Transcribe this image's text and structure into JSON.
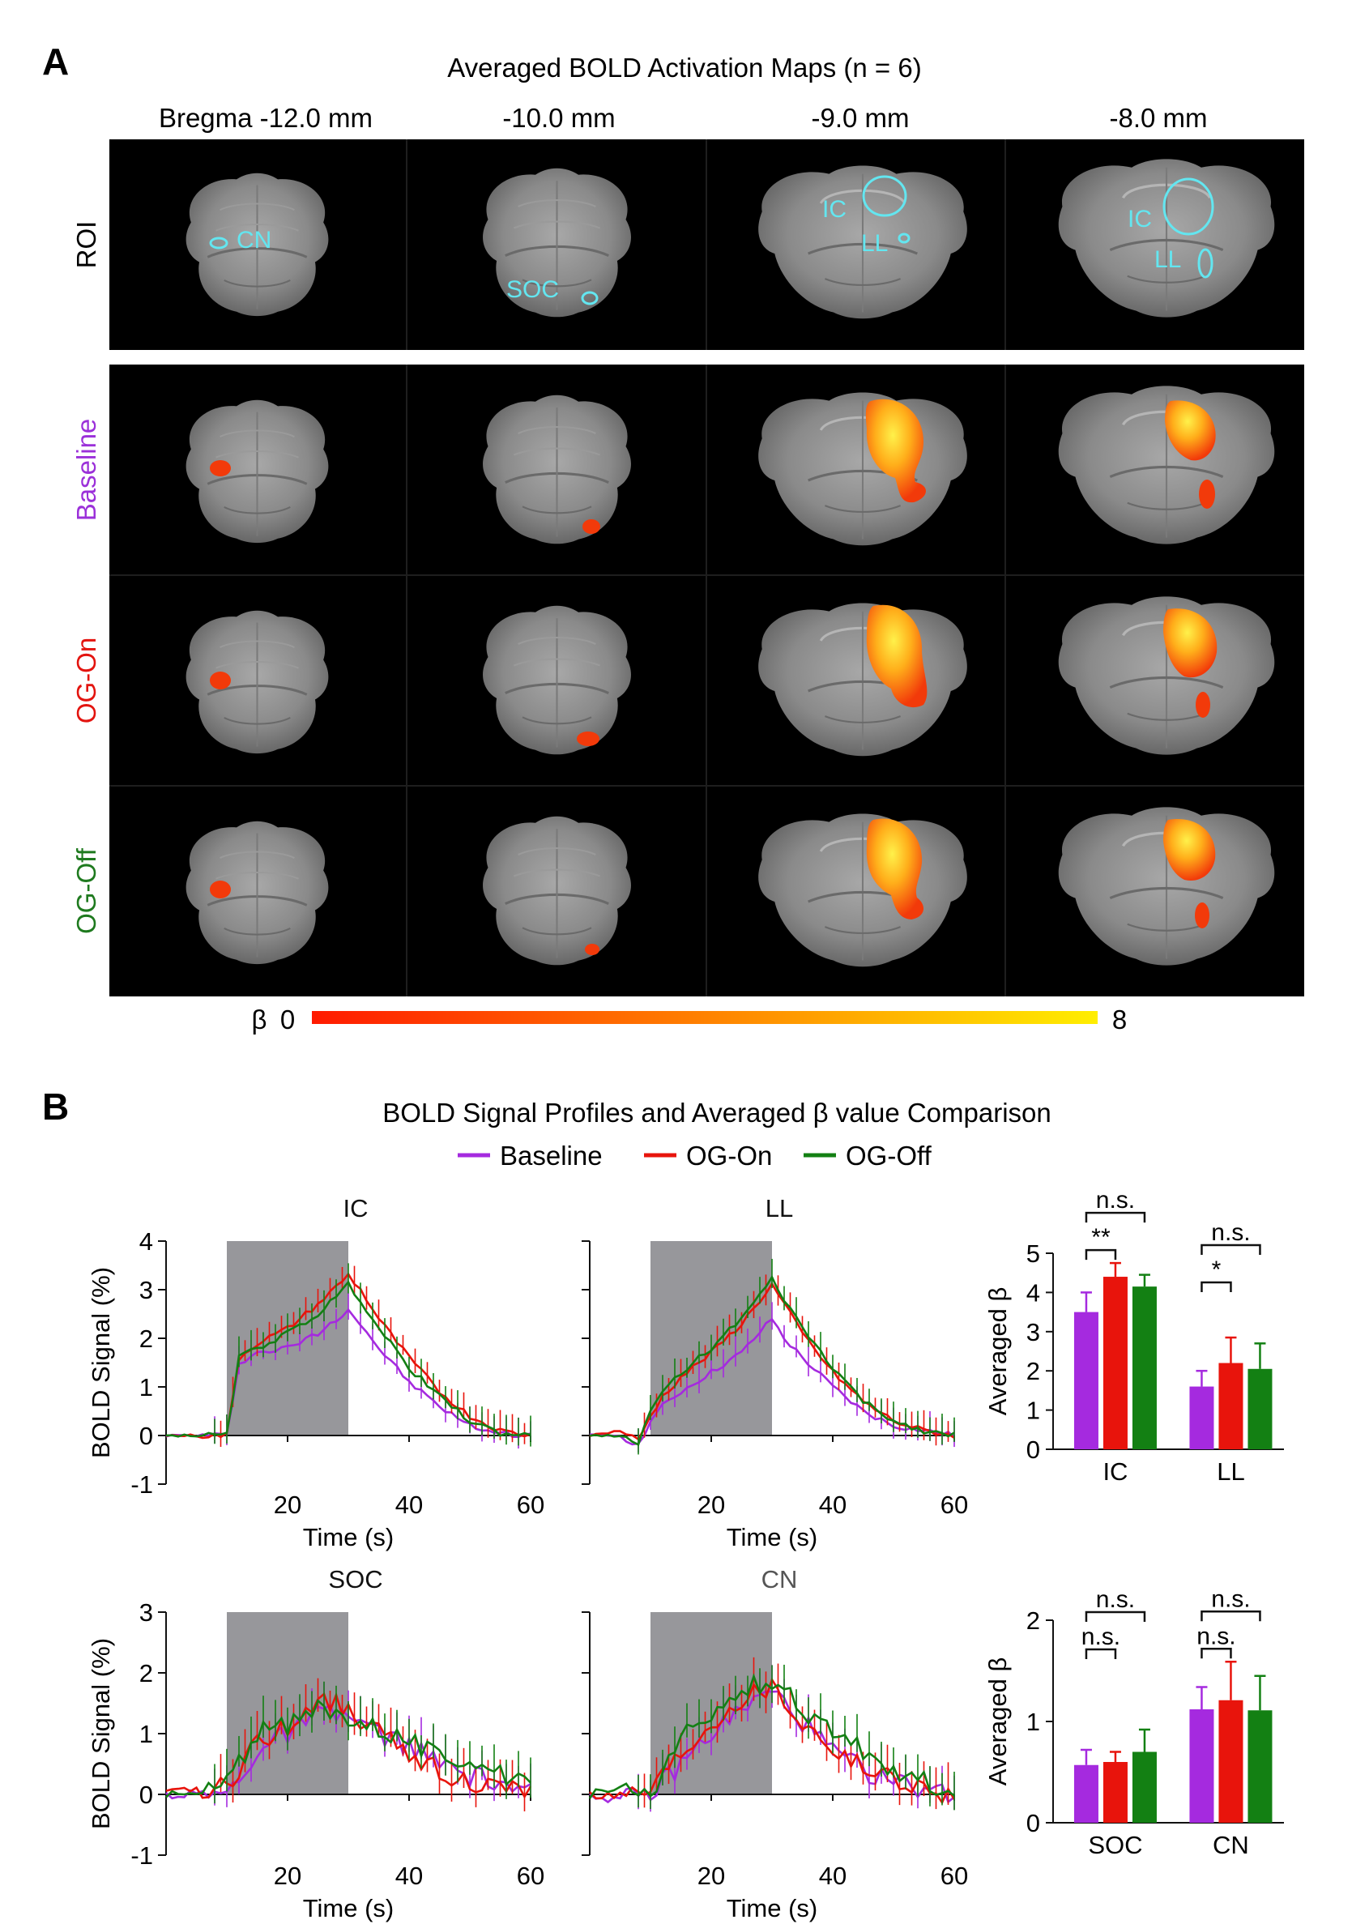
{
  "panelA": {
    "letter": "A",
    "title": "Averaged BOLD Activation Maps (n = 6)",
    "columns": [
      "Bregma -12.0 mm",
      "-10.0 mm",
      "-9.0 mm",
      "-8.0 mm"
    ],
    "rows": [
      {
        "label": "ROI",
        "color": "#111111"
      },
      {
        "label": "Baseline",
        "color": "#9b30d9"
      },
      {
        "label": "OG-On",
        "color": "#e3140f"
      },
      {
        "label": "OG-Off",
        "color": "#1f7a1f"
      }
    ],
    "roi_labels": [
      "CN",
      "SOC",
      "IC",
      "LL",
      "IC",
      "LL"
    ],
    "colorbar": {
      "symbol": "β",
      "min": "0",
      "max": "8",
      "color_low": "#ff1a00",
      "color_high": "#ffee00"
    }
  },
  "panelB": {
    "letter": "B",
    "title": "BOLD Signal Profiles and Averaged β value Comparison",
    "legend": [
      {
        "label": "Baseline",
        "color": "#a52adf"
      },
      {
        "label": "OG-On",
        "color": "#e8140c"
      },
      {
        "label": "OG-Off",
        "color": "#138013"
      }
    ],
    "x_axis_label": "Time (s)",
    "y_axis_label": "BOLD Signal (%)",
    "bar_y_label": "Averaged β",
    "categories_top": [
      "IC",
      "LL"
    ],
    "categories_bottom": [
      "SOC",
      "CN"
    ],
    "sig_top": [
      "n.s.",
      "**",
      "n.s.",
      "*"
    ],
    "sig_bottom": [
      "n.s.",
      "n.s.",
      "n.s.",
      "n.s."
    ]
  },
  "chart_data": [
    {
      "type": "line",
      "title": "IC",
      "xlabel": "Time (s)",
      "ylabel": "BOLD Signal (%)",
      "xlim": [
        0,
        60
      ],
      "ylim": [
        -1,
        4
      ],
      "xticks": [
        "20",
        "40",
        "60"
      ],
      "yticks": [
        "-1",
        "0",
        "1",
        "2",
        "3",
        "4"
      ],
      "stim_window": [
        10,
        30
      ],
      "series": [
        {
          "name": "Baseline",
          "x": [
            0,
            5,
            10,
            12,
            15,
            20,
            25,
            30,
            32,
            35,
            40,
            45,
            50,
            55,
            60
          ],
          "values": [
            0,
            0,
            0,
            1.5,
            1.7,
            1.8,
            2.1,
            2.6,
            2.3,
            1.8,
            1.1,
            0.6,
            0.2,
            0.05,
            0
          ]
        },
        {
          "name": "OG-On",
          "x": [
            0,
            5,
            10,
            12,
            15,
            20,
            25,
            30,
            32,
            35,
            40,
            45,
            50,
            55,
            60
          ],
          "values": [
            0,
            0,
            0,
            1.6,
            1.9,
            2.2,
            2.7,
            3.3,
            3.0,
            2.4,
            1.6,
            0.9,
            0.4,
            0.1,
            0
          ]
        },
        {
          "name": "OG-Off",
          "x": [
            0,
            5,
            10,
            12,
            15,
            20,
            25,
            30,
            32,
            35,
            40,
            45,
            50,
            55,
            60
          ],
          "values": [
            0,
            0,
            0,
            1.6,
            1.8,
            2.1,
            2.5,
            3.1,
            2.8,
            2.2,
            1.4,
            0.8,
            0.3,
            0.05,
            0
          ]
        }
      ]
    },
    {
      "type": "line",
      "title": "LL",
      "xlabel": "Time (s)",
      "ylabel": "",
      "xlim": [
        0,
        60
      ],
      "ylim": [
        -1,
        4
      ],
      "xticks": [
        "20",
        "40",
        "60"
      ],
      "stim_window": [
        10,
        30
      ],
      "series": [
        {
          "name": "Baseline",
          "x": [
            0,
            5,
            8,
            10,
            12,
            15,
            20,
            25,
            30,
            32,
            35,
            40,
            45,
            50,
            55,
            60
          ],
          "values": [
            0,
            0,
            -0.2,
            0.3,
            0.6,
            0.9,
            1.3,
            1.7,
            2.4,
            2.0,
            1.6,
            1.0,
            0.5,
            0.2,
            0.1,
            0
          ]
        },
        {
          "name": "OG-On",
          "x": [
            0,
            5,
            8,
            10,
            12,
            15,
            20,
            25,
            30,
            32,
            35,
            40,
            45,
            50,
            55,
            60
          ],
          "values": [
            0,
            0.1,
            -0.1,
            0.4,
            0.8,
            1.2,
            1.7,
            2.3,
            3.1,
            2.7,
            2.1,
            1.3,
            0.7,
            0.3,
            0.1,
            0
          ]
        },
        {
          "name": "OG-Off",
          "x": [
            0,
            5,
            8,
            10,
            12,
            15,
            20,
            25,
            30,
            32,
            35,
            40,
            45,
            50,
            55,
            60
          ],
          "values": [
            0,
            0,
            -0.2,
            0.5,
            0.9,
            1.3,
            1.8,
            2.4,
            3.2,
            2.8,
            2.2,
            1.4,
            0.7,
            0.3,
            0.1,
            0
          ]
        }
      ]
    },
    {
      "type": "bar",
      "title": "",
      "ylabel": "Averaged β",
      "ylim": [
        0,
        5
      ],
      "yticks": [
        "0",
        "1",
        "2",
        "3",
        "4",
        "5"
      ],
      "categories": [
        "IC",
        "LL"
      ],
      "series": [
        {
          "name": "Baseline",
          "values": [
            3.5,
            1.6
          ],
          "errors": [
            0.5,
            0.4
          ]
        },
        {
          "name": "OG-On",
          "values": [
            4.4,
            2.2
          ],
          "errors": [
            0.35,
            0.65
          ]
        },
        {
          "name": "OG-Off",
          "values": [
            4.15,
            2.05
          ],
          "errors": [
            0.3,
            0.65
          ]
        }
      ],
      "annotations": [
        {
          "text": "n.s.",
          "between": [
            "IC Baseline",
            "IC OG-Off"
          ]
        },
        {
          "text": "**",
          "between": [
            "IC Baseline",
            "IC OG-On"
          ]
        },
        {
          "text": "n.s.",
          "between": [
            "LL Baseline",
            "LL OG-Off"
          ]
        },
        {
          "text": "*",
          "between": [
            "LL Baseline",
            "LL OG-On"
          ]
        }
      ]
    },
    {
      "type": "line",
      "title": "SOC",
      "xlabel": "Time (s)",
      "ylabel": "BOLD Signal (%)",
      "xlim": [
        0,
        60
      ],
      "ylim": [
        -1,
        3
      ],
      "xticks": [
        "20",
        "40",
        "60"
      ],
      "yticks": [
        "-1",
        "0",
        "1",
        "2",
        "3"
      ],
      "stim_window": [
        10,
        30
      ],
      "series": [
        {
          "name": "Baseline",
          "x": [
            0,
            5,
            10,
            15,
            20,
            25,
            30,
            35,
            40,
            45,
            50,
            55,
            60
          ],
          "values": [
            0,
            0,
            0,
            0.7,
            1.0,
            1.3,
            1.3,
            1.0,
            0.8,
            0.5,
            0.3,
            0.2,
            0
          ]
        },
        {
          "name": "OG-On",
          "x": [
            0,
            5,
            10,
            15,
            20,
            25,
            30,
            35,
            40,
            45,
            50,
            55,
            60
          ],
          "values": [
            0,
            0.1,
            0.1,
            0.9,
            1.1,
            1.6,
            1.4,
            1.0,
            0.7,
            0.4,
            0.2,
            0.1,
            0
          ]
        },
        {
          "name": "OG-Off",
          "x": [
            0,
            5,
            10,
            15,
            20,
            25,
            30,
            35,
            40,
            45,
            50,
            55,
            60
          ],
          "values": [
            0,
            0,
            0.2,
            1.0,
            1.1,
            1.4,
            1.3,
            1.1,
            0.9,
            0.6,
            0.6,
            0.3,
            0.1
          ]
        }
      ]
    },
    {
      "type": "line",
      "title": "CN",
      "xlabel": "Time (s)",
      "ylabel": "",
      "xlim": [
        0,
        60
      ],
      "ylim": [
        -1,
        3
      ],
      "xticks": [
        "20",
        "40",
        "60"
      ],
      "stim_window": [
        10,
        30
      ],
      "series": [
        {
          "name": "Baseline",
          "x": [
            0,
            5,
            10,
            15,
            20,
            25,
            30,
            35,
            40,
            45,
            50,
            55,
            60
          ],
          "values": [
            0,
            -0.1,
            0,
            0.5,
            1.0,
            1.4,
            1.7,
            1.2,
            0.7,
            0.4,
            0.2,
            0.1,
            0
          ]
        },
        {
          "name": "OG-On",
          "x": [
            0,
            5,
            10,
            15,
            20,
            25,
            30,
            35,
            40,
            45,
            50,
            55,
            60
          ],
          "values": [
            0,
            0,
            0.1,
            0.7,
            1.2,
            1.6,
            1.8,
            1.2,
            0.8,
            0.4,
            0.3,
            0.1,
            0
          ]
        },
        {
          "name": "OG-Off",
          "x": [
            0,
            5,
            10,
            15,
            20,
            25,
            30,
            35,
            40,
            45,
            50,
            55,
            60
          ],
          "values": [
            0,
            0.1,
            0,
            0.9,
            1.3,
            1.7,
            1.9,
            1.4,
            1.0,
            0.7,
            0.4,
            0.2,
            0.1
          ]
        }
      ]
    },
    {
      "type": "bar",
      "title": "",
      "ylabel": "Averaged β",
      "ylim": [
        0,
        2
      ],
      "yticks": [
        "0",
        "1",
        "2"
      ],
      "categories": [
        "SOC",
        "CN"
      ],
      "series": [
        {
          "name": "Baseline",
          "values": [
            0.57,
            1.12
          ],
          "errors": [
            0.15,
            0.22
          ]
        },
        {
          "name": "OG-On",
          "values": [
            0.6,
            1.21
          ],
          "errors": [
            0.1,
            0.38
          ]
        },
        {
          "name": "OG-Off",
          "values": [
            0.7,
            1.11
          ],
          "errors": [
            0.22,
            0.34
          ]
        }
      ],
      "annotations": [
        {
          "text": "n.s.",
          "between": [
            "SOC Baseline",
            "SOC OG-Off"
          ]
        },
        {
          "text": "n.s.",
          "between": [
            "SOC Baseline",
            "SOC OG-On"
          ]
        },
        {
          "text": "n.s.",
          "between": [
            "CN Baseline",
            "CN OG-Off"
          ]
        },
        {
          "text": "n.s.",
          "between": [
            "CN Baseline",
            "CN OG-On"
          ]
        }
      ]
    }
  ]
}
